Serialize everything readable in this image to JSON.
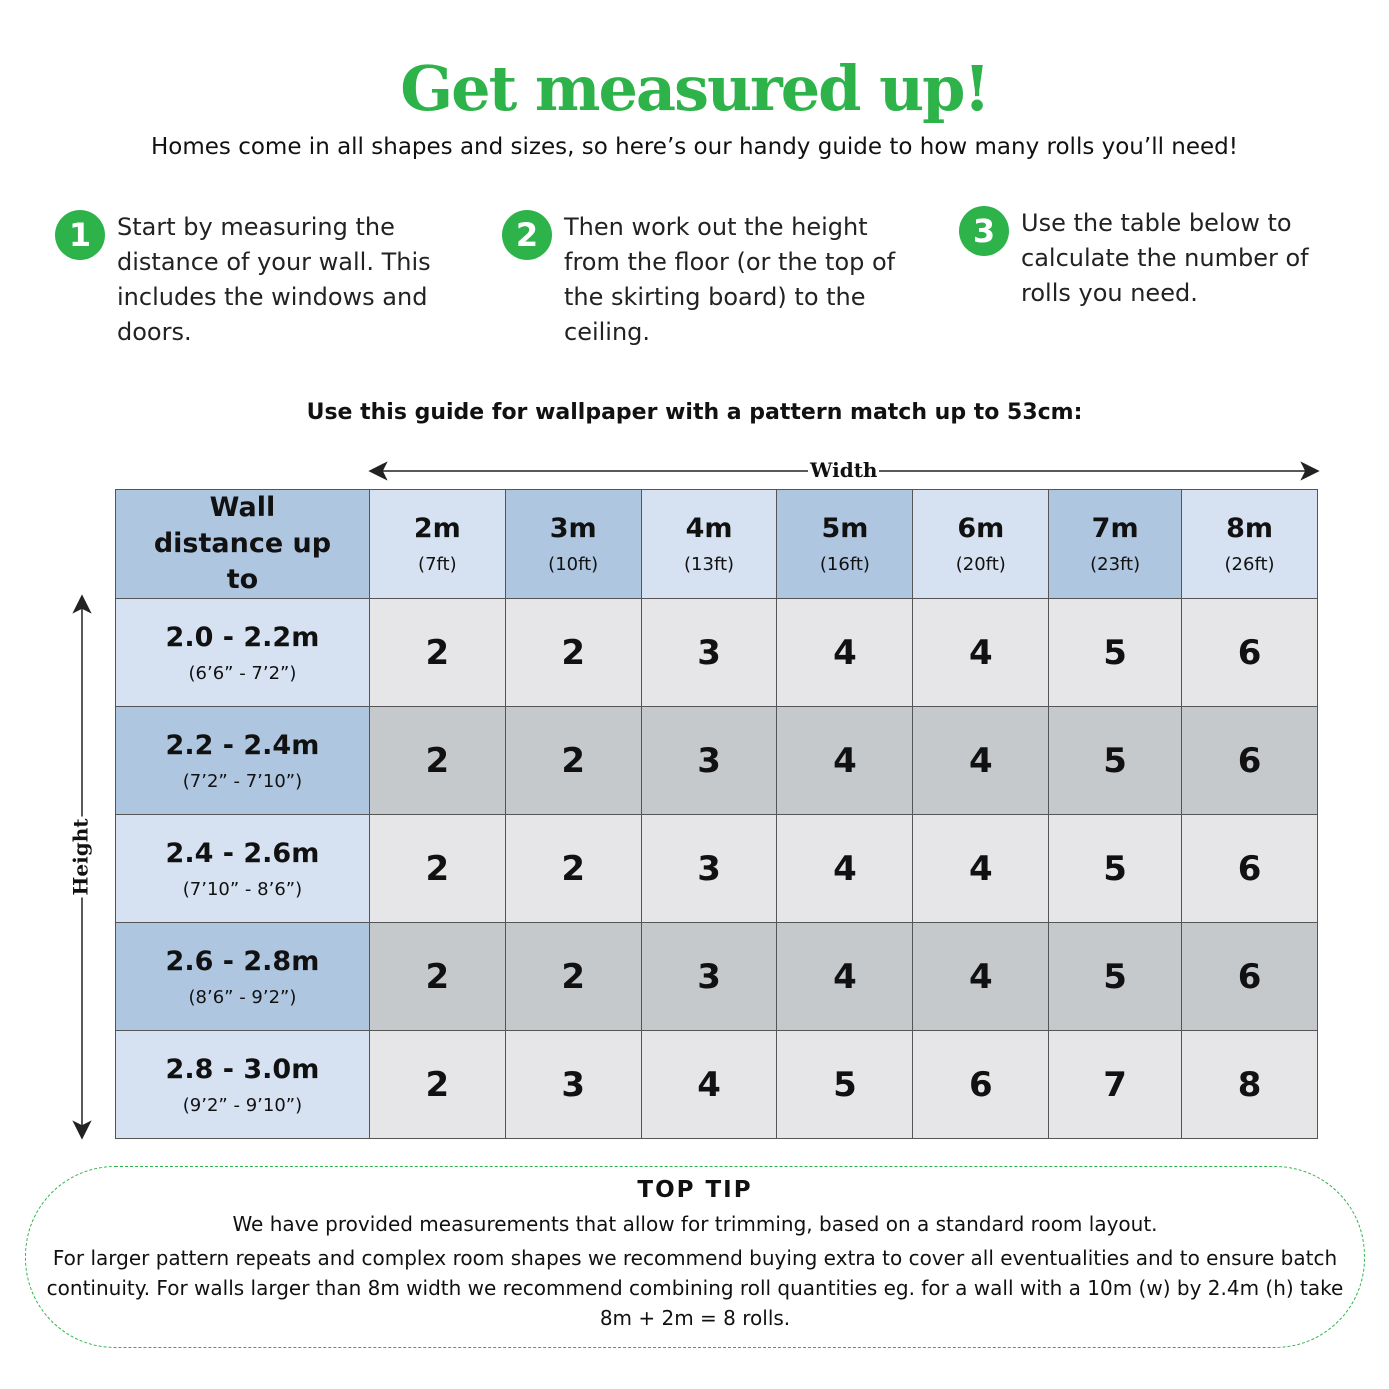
{
  "title": "Get measured up!",
  "subtitle": "Homes come in all shapes and sizes, so here’s our handy guide to how many rolls you’ll need!",
  "accent_color": "#2db34a",
  "steps": [
    {
      "number": "1",
      "text": "Start by measuring the distance of your wall. This includes the windows and doors."
    },
    {
      "number": "2",
      "text": "Then work out the height from the floor (or the top of the skirting board) to the ceiling."
    },
    {
      "number": "3",
      "text": "Use the table below to calculate the number of rolls you need."
    }
  ],
  "guide_heading": "Use this guide for wallpaper with a pattern match up to 53cm:",
  "width_axis_label": "Width",
  "height_axis_label": "Height",
  "table": {
    "corner_header": "Wall distance up to",
    "columns": [
      {
        "m": "2m",
        "ft": "(7ft)"
      },
      {
        "m": "3m",
        "ft": "(10ft)"
      },
      {
        "m": "4m",
        "ft": "(13ft)"
      },
      {
        "m": "5m",
        "ft": "(16ft)"
      },
      {
        "m": "6m",
        "ft": "(20ft)"
      },
      {
        "m": "7m",
        "ft": "(23ft)"
      },
      {
        "m": "8m",
        "ft": "(26ft)"
      }
    ],
    "rows": [
      {
        "m": "2.0 - 2.2m",
        "ft": "(6’6” - 7’2”)",
        "values": [
          "2",
          "2",
          "3",
          "4",
          "4",
          "5",
          "6"
        ]
      },
      {
        "m": "2.2 - 2.4m",
        "ft": "(7’2” - 7’10”)",
        "values": [
          "2",
          "2",
          "3",
          "4",
          "4",
          "5",
          "6"
        ]
      },
      {
        "m": "2.4 - 2.6m",
        "ft": "(7’10” - 8’6”)",
        "values": [
          "2",
          "2",
          "3",
          "4",
          "4",
          "5",
          "6"
        ]
      },
      {
        "m": "2.6 - 2.8m",
        "ft": "(8’6” - 9’2”)",
        "values": [
          "2",
          "2",
          "3",
          "4",
          "4",
          "5",
          "6"
        ]
      },
      {
        "m": "2.8 - 3.0m",
        "ft": "(9’2” - 9’10”)",
        "values": [
          "2",
          "3",
          "4",
          "5",
          "6",
          "7",
          "8"
        ]
      }
    ]
  },
  "top_tip": {
    "heading": "TOP TIP",
    "line1": "We have provided measurements that allow for trimming, based on a standard room layout.",
    "line2": "For larger pattern repeats and complex room shapes we recommend buying extra to cover all eventualities and to ensure batch continuity. For walls larger than 8m width we recommend combining roll quantities eg. for a wall with a 10m (w) by 2.4m (h) take 8m + 2m = 8 rolls."
  }
}
